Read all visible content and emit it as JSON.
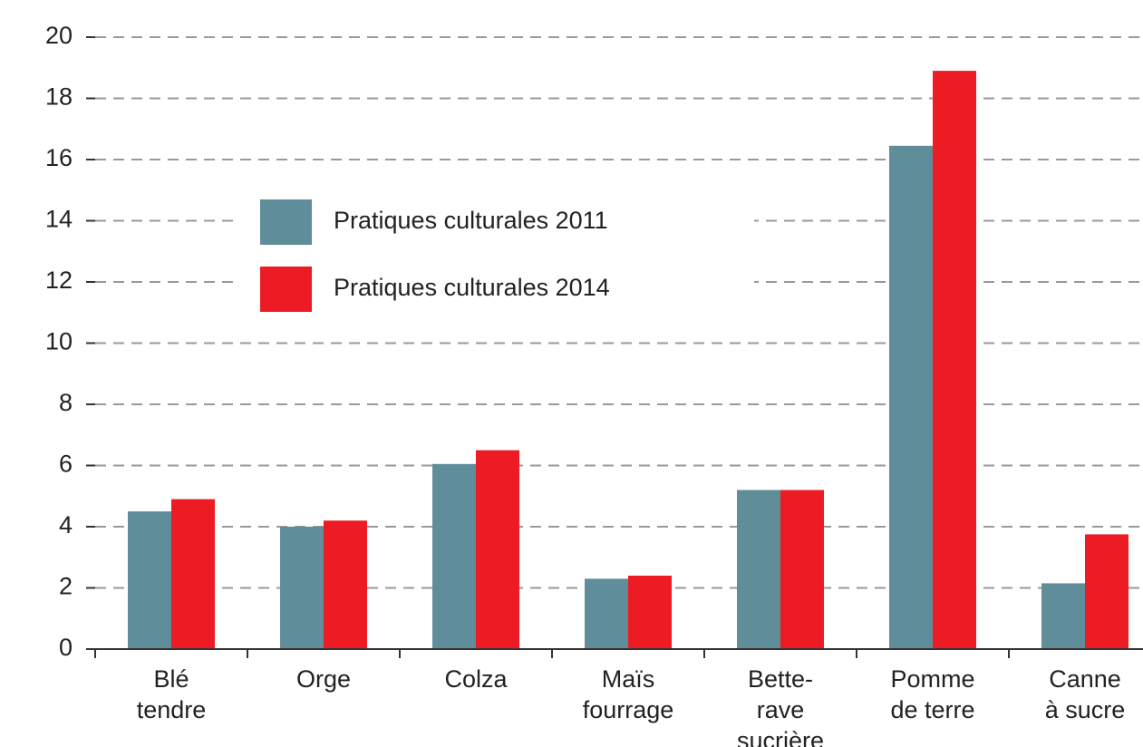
{
  "chart_data": {
    "type": "bar",
    "categories": [
      [
        "Blé",
        "tendre"
      ],
      [
        "Orge"
      ],
      [
        "Colza"
      ],
      [
        "Maïs",
        "fourrage"
      ],
      [
        "Bette-",
        "rave",
        "sucrière"
      ],
      [
        "Pomme",
        "de terre"
      ],
      [
        "Canne",
        "à sucre"
      ]
    ],
    "series": [
      {
        "name": "Pratiques culturales 2011",
        "color": "#5f8d9a",
        "values": [
          4.5,
          4.0,
          6.05,
          2.3,
          5.2,
          16.45,
          2.15
        ]
      },
      {
        "name": "Pratiques culturales 2014",
        "color": "#ed1c24",
        "values": [
          4.9,
          4.2,
          6.5,
          2.4,
          5.2,
          18.9,
          3.75
        ]
      }
    ],
    "ylim": [
      0,
      20
    ],
    "yticks": [
      0,
      2,
      4,
      6,
      8,
      10,
      12,
      14,
      16,
      18,
      20
    ],
    "grid": true
  }
}
